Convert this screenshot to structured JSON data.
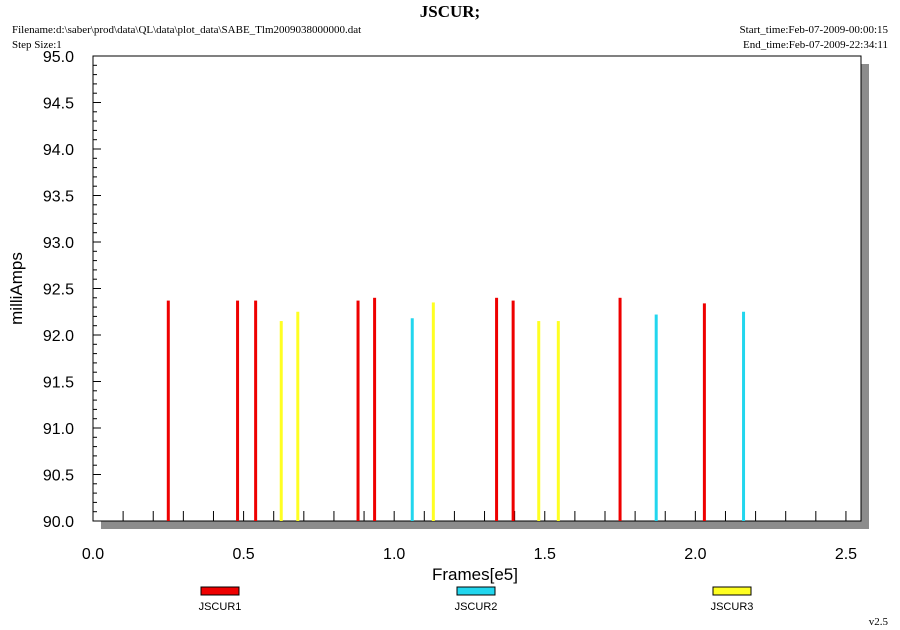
{
  "header": {
    "title": "JSCUR;",
    "filename": "Filename:d:\\saber\\prod\\data\\QL\\data\\plot_data\\SABE_Tlm2009038000000.dat",
    "step_size": "Step Size:1",
    "start_time": "Start_time:Feb-07-2009-00:00:15",
    "end_time": "End_time:Feb-07-2009-22:34:11"
  },
  "footer": {
    "version": "v2.5"
  },
  "colors": {
    "JSCUR1": "#ee0000",
    "JSCUR2": "#22d6ee",
    "JSCUR3": "#ffff22",
    "frame_shadow": "#8c8c8c"
  },
  "chart_data": {
    "type": "bar",
    "title": "JSCUR;",
    "xlabel": "Frames[e5]",
    "ylabel": "milliAmps",
    "xlim": [
      0.0,
      2.55
    ],
    "ylim": [
      90.0,
      95.0
    ],
    "x_ticks": [
      {
        "value": 0.0,
        "label": "0.0"
      },
      {
        "value": 0.5,
        "label": "0.5"
      },
      {
        "value": 1.0,
        "label": "1.0"
      },
      {
        "value": 1.5,
        "label": "1.5"
      },
      {
        "value": 2.0,
        "label": "2.0"
      },
      {
        "value": 2.5,
        "label": "2.5"
      }
    ],
    "y_ticks": [
      {
        "value": 90.0,
        "label": "90.0"
      },
      {
        "value": 90.5,
        "label": "90.5"
      },
      {
        "value": 91.0,
        "label": "91.0"
      },
      {
        "value": 91.5,
        "label": "91.5"
      },
      {
        "value": 92.0,
        "label": "92.0"
      },
      {
        "value": 92.5,
        "label": "92.5"
      },
      {
        "value": 93.0,
        "label": "93.0"
      },
      {
        "value": 93.5,
        "label": "93.5"
      },
      {
        "value": 94.0,
        "label": "94.0"
      },
      {
        "value": 94.5,
        "label": "94.5"
      },
      {
        "value": 95.0,
        "label": "95.0"
      }
    ],
    "grid": false,
    "legend_position": "bottom",
    "series": [
      {
        "name": "JSCUR1",
        "x": [
          0.25,
          0.48,
          0.54,
          0.88,
          0.935,
          1.34,
          1.395,
          1.75,
          2.03
        ],
        "values": [
          92.37,
          92.37,
          92.37,
          92.37,
          92.4,
          92.4,
          92.37,
          92.4,
          92.34
        ]
      },
      {
        "name": "JSCUR2",
        "x": [
          1.06,
          1.87,
          2.16
        ],
        "values": [
          92.18,
          92.22,
          92.25
        ]
      },
      {
        "name": "JSCUR3",
        "x": [
          0.625,
          0.68,
          1.13,
          1.48,
          1.545
        ],
        "values": [
          92.15,
          92.25,
          92.35,
          92.15,
          92.15
        ]
      }
    ]
  }
}
